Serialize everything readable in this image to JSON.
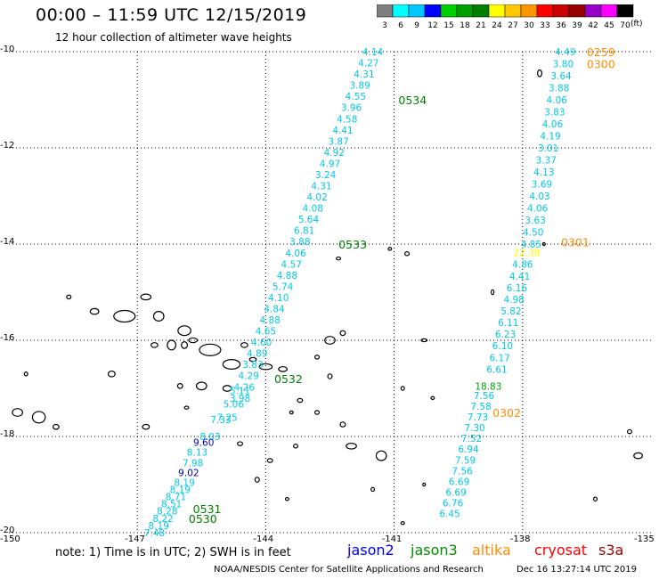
{
  "header": {
    "title": "00:00 – 11:59 UTC 12/15/2019",
    "subtitle": "12 hour collection of altimeter wave heights"
  },
  "colorbar": {
    "labels": [
      "3",
      "6",
      "9",
      "12",
      "15",
      "18",
      "21",
      "24",
      "27",
      "30",
      "33",
      "36",
      "39",
      "42",
      "45",
      "70"
    ],
    "colors": [
      "#7f7f7f",
      "#00ffff",
      "#00c8ff",
      "#0000ff",
      "#00d000",
      "#00a000",
      "#008000",
      "#ffff00",
      "#ffc800",
      "#ff9600",
      "#ff0000",
      "#c80000",
      "#960000",
      "#9600c8",
      "#ff00ff",
      "#000000"
    ],
    "unit": "(ft)"
  },
  "axes": {
    "lat_labels": [
      "-10",
      "-12",
      "-14",
      "-16",
      "-18",
      "-20"
    ],
    "lat_values": [
      -10,
      -12,
      -14,
      -16,
      -18,
      -20
    ],
    "lon_labels": [
      "-150",
      "-147",
      "-144",
      "-141",
      "-138",
      "-135"
    ],
    "lon_values": [
      -150,
      -147,
      -144,
      -141,
      -138,
      -135
    ],
    "lon_range": [
      -150,
      -135
    ],
    "lat_range": [
      -20,
      -10
    ],
    "grid": true
  },
  "tracks": [
    {
      "color": "#00c8e6",
      "start": [
        -141.5,
        -10.0
      ],
      "end": [
        -144.6,
        -17.2
      ],
      "values": [
        "4.14",
        "4.27",
        "4.31",
        "3.89",
        "4.55",
        "3.96",
        "4.58",
        "4.41",
        "3.87",
        "4.92",
        "4.97",
        "3.24",
        "4.31",
        "4.02",
        "4.08",
        "5.64",
        "6.81",
        "3.88",
        "4.06",
        "4.57",
        "4.88",
        "5.74",
        "4.10",
        "4.84",
        "4.88",
        "4.65",
        "4.60",
        "4.89",
        "3.83",
        "4.29",
        "4.26",
        "3.98"
      ]
    },
    {
      "color": "#00c8e6",
      "start": [
        -144.6,
        -17.05
      ],
      "end": [
        -144.9,
        -17.6
      ],
      "values": [
        "5.11",
        "5.06",
        "7.25"
      ]
    },
    {
      "color": "#00c8e6",
      "start": [
        -145.05,
        -17.65
      ],
      "end": [
        -145.3,
        -18.0
      ],
      "values": [
        "7.33",
        "8.03"
      ]
    },
    {
      "color": "#0000c8",
      "start": [
        -145.45,
        -18.12
      ],
      "end": [
        -145.45,
        -18.12
      ],
      "values": [
        "9.60"
      ]
    },
    {
      "color": "#00c8e6",
      "start": [
        -145.6,
        -18.32
      ],
      "end": [
        -145.7,
        -18.55
      ],
      "values": [
        "8.13",
        "7.98"
      ]
    },
    {
      "color": "#0000c8",
      "start": [
        -145.8,
        -18.75
      ],
      "end": [
        -145.8,
        -18.75
      ],
      "values": [
        "9.02"
      ]
    },
    {
      "color": "#00c8e6",
      "start": [
        -145.9,
        -18.95
      ],
      "end": [
        -146.6,
        -20.0
      ],
      "values": [
        "8.19",
        "8.19",
        "8.71",
        "8.51",
        "8.28",
        "8.22",
        "8.19",
        "7.48"
      ]
    },
    {
      "color": "#00c8e6",
      "start": [
        -137.0,
        -10.0
      ],
      "end": [
        -137.8,
        -14.0
      ],
      "values": [
        "4.49",
        "3.80",
        "3.64",
        "3.88",
        "4.06",
        "3.83",
        "4.06",
        "4.19",
        "3.01",
        "3.37",
        "4.13",
        "3.69",
        "4.03",
        "4.06",
        "3.63",
        "4.50",
        "4.85"
      ]
    },
    {
      "color": "#ffff00",
      "start": [
        -137.9,
        -14.18
      ],
      "end": [
        -137.9,
        -14.18
      ],
      "values": [
        "22.38"
      ]
    },
    {
      "color": "#00c8e6",
      "start": [
        -138.0,
        -14.42
      ],
      "end": [
        -138.6,
        -16.6
      ],
      "values": [
        "4.86",
        "4.41",
        "6.16",
        "4.98",
        "5.82",
        "6.11",
        "6.23",
        "6.10",
        "6.17",
        "6.61"
      ]
    },
    {
      "color": "#00a000",
      "start": [
        -138.8,
        -16.95
      ],
      "end": [
        -138.8,
        -16.95
      ],
      "values": [
        "18.83"
      ]
    },
    {
      "color": "#00c8e6",
      "start": [
        -138.9,
        -17.15
      ],
      "end": [
        -139.7,
        -19.6
      ],
      "values": [
        "7.56",
        "7.58",
        "7.73",
        "7.30",
        "7.52",
        "6.94",
        "7.59",
        "7.56",
        "6.69",
        "6.69",
        "6.76",
        "6.45"
      ]
    }
  ],
  "time_labels": [
    {
      "text": "0534",
      "color": "#008000",
      "lon": -140.9,
      "lat": -11.0
    },
    {
      "text": "0533",
      "color": "#008000",
      "lon": -142.3,
      "lat": -14.0
    },
    {
      "text": "0532",
      "color": "#008000",
      "lon": -143.8,
      "lat": -16.8
    },
    {
      "text": "0531",
      "color": "#008000",
      "lon": -145.7,
      "lat": -19.5
    },
    {
      "text": "0530",
      "color": "#008000",
      "lon": -145.8,
      "lat": -19.7
    },
    {
      "text": "0259",
      "color": "#ff8c00",
      "lon": -136.5,
      "lat": -10.0
    },
    {
      "text": "0300",
      "color": "#ff8c00",
      "lon": -136.5,
      "lat": -10.25
    },
    {
      "text": "0301",
      "color": "#ff8c00",
      "lon": -137.1,
      "lat": -13.95
    },
    {
      "text": "0302",
      "color": "#ff8c00",
      "lon": -138.7,
      "lat": -17.5
    }
  ],
  "islands": [
    [
      -148.6,
      -15.1,
      0.05,
      0.04
    ],
    [
      -148.0,
      -15.4,
      0.1,
      0.06
    ],
    [
      -147.3,
      -15.5,
      0.25,
      0.12
    ],
    [
      -146.8,
      -15.1,
      0.12,
      0.06
    ],
    [
      -146.5,
      -15.5,
      0.12,
      0.1
    ],
    [
      -145.9,
      -15.8,
      0.15,
      0.1
    ],
    [
      -145.7,
      -16.0,
      0.1,
      0.05
    ],
    [
      -145.3,
      -16.2,
      0.25,
      0.12
    ],
    [
      -146.6,
      -16.1,
      0.08,
      0.05
    ],
    [
      -146.2,
      -16.1,
      0.1,
      0.1
    ],
    [
      -145.9,
      -16.1,
      0.07,
      0.07
    ],
    [
      -144.8,
      -16.5,
      0.2,
      0.1
    ],
    [
      -144.5,
      -16.1,
      0.08,
      0.05
    ],
    [
      -144.3,
      -16.4,
      0.08,
      0.04
    ],
    [
      -144.0,
      -16.55,
      0.15,
      0.06
    ],
    [
      -143.6,
      -16.6,
      0.1,
      0.05
    ],
    [
      -142.5,
      -16.0,
      0.12,
      0.08
    ],
    [
      -142.2,
      -15.85,
      0.06,
      0.05
    ],
    [
      -142.8,
      -16.35,
      0.05,
      0.04
    ],
    [
      -142.5,
      -16.75,
      0.05,
      0.05
    ],
    [
      -144.9,
      -17.0,
      0.1,
      0.06
    ],
    [
      -145.5,
      -16.95,
      0.12,
      0.08
    ],
    [
      -146.0,
      -16.95,
      0.06,
      0.05
    ],
    [
      -145.85,
      -17.4,
      0.05,
      0.03
    ],
    [
      -143.4,
      -17.5,
      0.04,
      0.03
    ],
    [
      -143.2,
      -17.25,
      0.06,
      0.04
    ],
    [
      -142.8,
      -17.5,
      0.05,
      0.04
    ],
    [
      -142.2,
      -17.75,
      0.06,
      0.05
    ],
    [
      -142.0,
      -18.2,
      0.12,
      0.06
    ],
    [
      -141.3,
      -18.4,
      0.12,
      0.1
    ],
    [
      -143.3,
      -18.2,
      0.05,
      0.04
    ],
    [
      -143.9,
      -18.5,
      0.06,
      0.04
    ],
    [
      -140.8,
      -17.0,
      0.04,
      0.04
    ],
    [
      -140.3,
      -16.0,
      0.07,
      0.03
    ],
    [
      -147.6,
      -16.7,
      0.08,
      0.06
    ],
    [
      -149.6,
      -16.7,
      0.04,
      0.04
    ],
    [
      -149.8,
      -17.5,
      0.12,
      0.08
    ],
    [
      -149.3,
      -17.6,
      0.15,
      0.12
    ],
    [
      -148.9,
      -17.8,
      0.07,
      0.05
    ],
    [
      -137.6,
      -10.45,
      0.05,
      0.07
    ],
    [
      -137.5,
      -14.0,
      0.03,
      0.03
    ],
    [
      -138.7,
      -15.0,
      0.03,
      0.05
    ],
    [
      -135.5,
      -17.9,
      0.05,
      0.04
    ],
    [
      -135.3,
      -18.4,
      0.1,
      0.06
    ],
    [
      -136.3,
      -19.3,
      0.04,
      0.04
    ],
    [
      -140.8,
      -19.8,
      0.04,
      0.03
    ],
    [
      -141.5,
      -19.1,
      0.04,
      0.04
    ],
    [
      -140.3,
      -19.0,
      0.03,
      0.03
    ],
    [
      -140.7,
      -14.2,
      0.05,
      0.04
    ],
    [
      -141.1,
      -14.1,
      0.04,
      0.03
    ],
    [
      -142.3,
      -14.3,
      0.05,
      0.03
    ],
    [
      -140.1,
      -17.2,
      0.04,
      0.03
    ],
    [
      -144.2,
      -18.9,
      0.05,
      0.05
    ],
    [
      -143.5,
      -19.3,
      0.04,
      0.03
    ],
    [
      -146.8,
      -17.8,
      0.08,
      0.05
    ],
    [
      -144.6,
      -18.15,
      0.06,
      0.04
    ]
  ],
  "footer": {
    "note": "note: 1) Time is in UTC; 2) SWH is in feet",
    "satellites": [
      {
        "name": "jason2",
        "color": "#0000ff"
      },
      {
        "name": "jason3",
        "color": "#009000"
      },
      {
        "name": "altika",
        "color": "#ff8c00"
      },
      {
        "name": "cryosat",
        "color": "#ff0000"
      },
      {
        "name": "s3a",
        "color": "#9b0000"
      }
    ],
    "credit": "NOAA/NESDIS Center for Satellite Applications and Research",
    "timestamp": "Dec 16 13:27:14 UTC 2019"
  }
}
